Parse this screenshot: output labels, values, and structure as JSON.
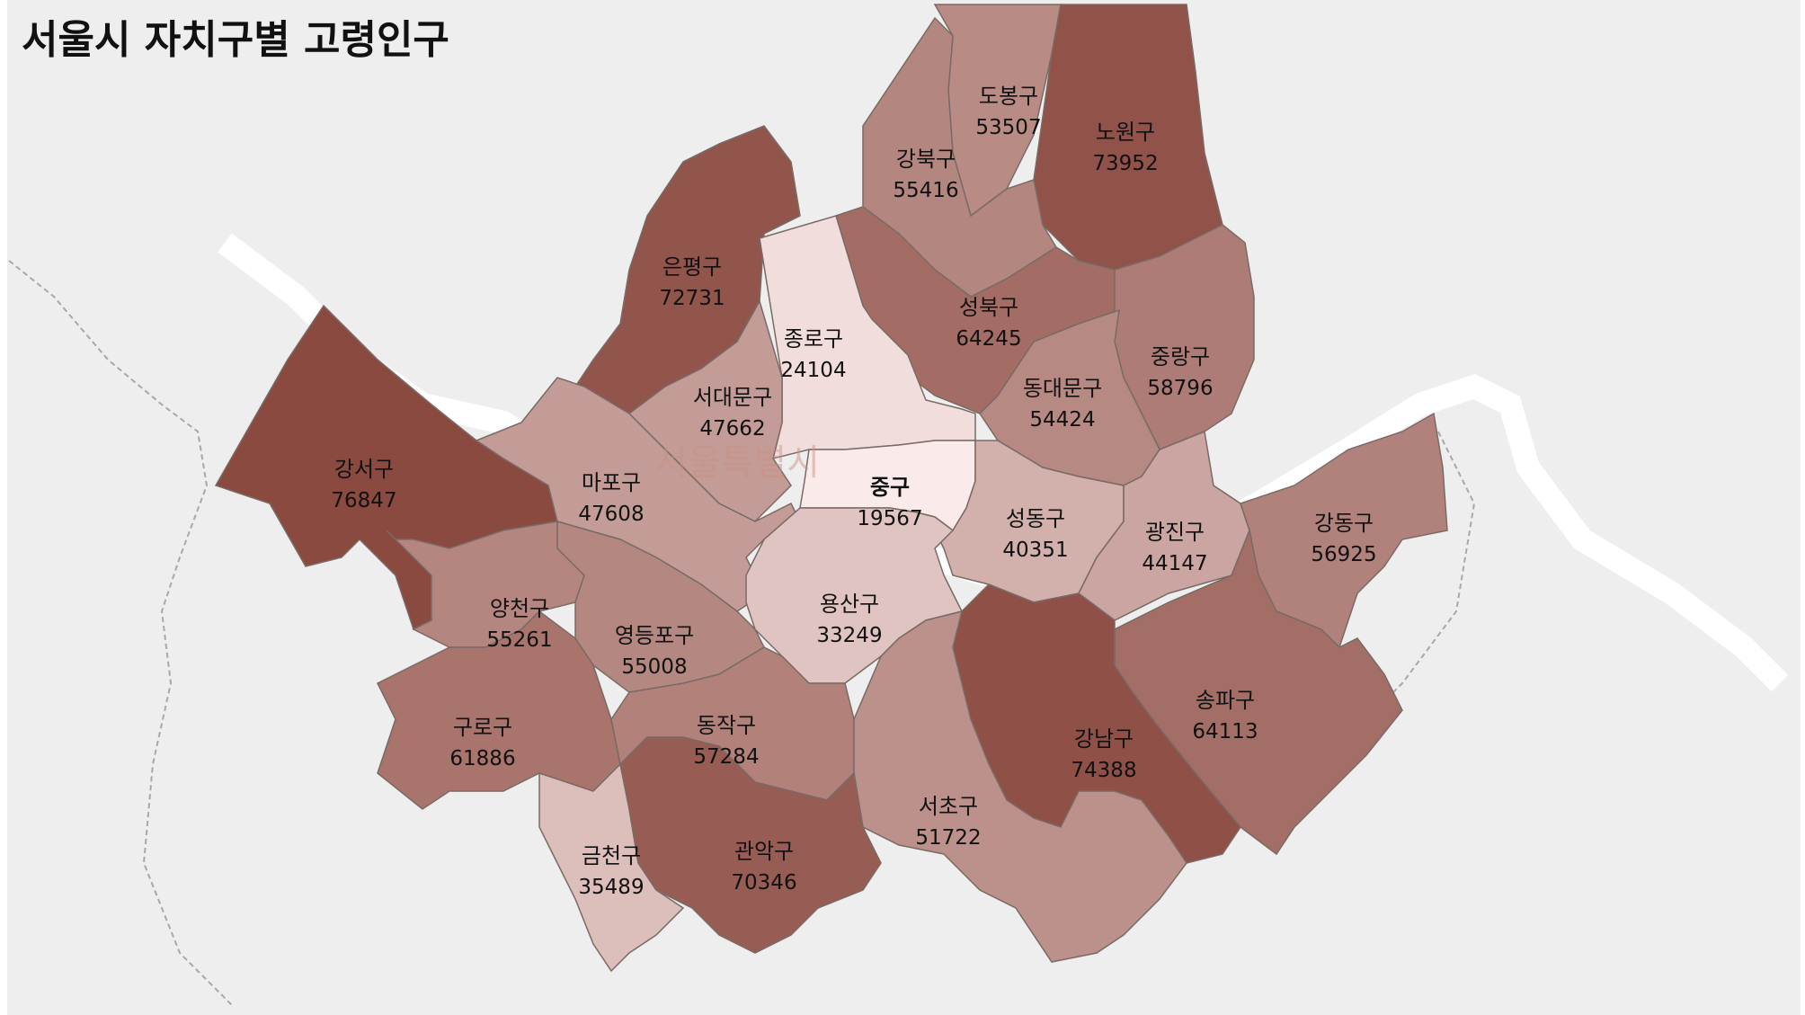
{
  "title": "서울시 자치구별 고령인구",
  "watermark": "서울특별시",
  "colors": {
    "background": "#eeeeee",
    "river": "#ffffff",
    "border": "#7a6a66",
    "scale_low": "#fbeaea",
    "scale_high": "#8a4a40"
  },
  "chart_data": {
    "type": "choropleth",
    "title": "서울시 자치구별 고령인구",
    "regions": [
      {
        "name": "도봉구",
        "value": 53507
      },
      {
        "name": "노원구",
        "value": 73952
      },
      {
        "name": "강북구",
        "value": 55416
      },
      {
        "name": "은평구",
        "value": 72731
      },
      {
        "name": "성북구",
        "value": 64245
      },
      {
        "name": "종로구",
        "value": 24104
      },
      {
        "name": "중랑구",
        "value": 58796
      },
      {
        "name": "동대문구",
        "value": 54424
      },
      {
        "name": "서대문구",
        "value": 47662
      },
      {
        "name": "강서구",
        "value": 76847
      },
      {
        "name": "마포구",
        "value": 47608
      },
      {
        "name": "중구",
        "value": 19567
      },
      {
        "name": "성동구",
        "value": 40351
      },
      {
        "name": "광진구",
        "value": 44147
      },
      {
        "name": "강동구",
        "value": 56925
      },
      {
        "name": "양천구",
        "value": 55261
      },
      {
        "name": "영등포구",
        "value": 55008
      },
      {
        "name": "용산구",
        "value": 33249
      },
      {
        "name": "송파구",
        "value": 64113
      },
      {
        "name": "구로구",
        "value": 61886
      },
      {
        "name": "동작구",
        "value": 57284
      },
      {
        "name": "강남구",
        "value": 74388
      },
      {
        "name": "서초구",
        "value": 51722
      },
      {
        "name": "금천구",
        "value": 35489
      },
      {
        "name": "관악구",
        "value": 70346
      }
    ]
  }
}
